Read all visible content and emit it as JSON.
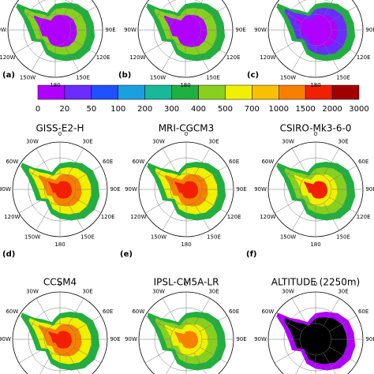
{
  "colorbar": {
    "ticks": [
      "0",
      "20",
      "50",
      "100",
      "200",
      "300",
      "400",
      "500",
      "700",
      "1000",
      "1500",
      "2000",
      "3000"
    ],
    "colors": [
      "#b000ff",
      "#6a2cff",
      "#2050ff",
      "#1aa0e0",
      "#18b89a",
      "#20b040",
      "#88d020",
      "#f0f000",
      "#f8c000",
      "#f88000",
      "#f02000",
      "#a00000"
    ]
  },
  "panels": [
    {
      "label": "(a)",
      "grid_labels": [
        "90E",
        "120E",
        "150E",
        "180",
        "150W",
        "120W",
        "90W"
      ],
      "colors": [
        "#20b040",
        "#88d020",
        "#b000ff",
        "#b000ff"
      ]
    },
    {
      "label": "(b)",
      "grid_labels": [
        "90E",
        "120E",
        "150E",
        "180",
        "150W",
        "120W",
        "90W"
      ],
      "colors": [
        "#20b040",
        "#88d020",
        "#b000ff",
        "#b000ff"
      ]
    },
    {
      "label": "(c)",
      "grid_labels": [
        "90E",
        "120E",
        "150E",
        "180",
        "150W",
        "120W",
        "90W"
      ],
      "colors": [
        "#20b040",
        "#6a2cff",
        "#b000ff",
        "#b000ff"
      ]
    },
    {
      "label": "(d)",
      "title": "GISS-E2-H",
      "grid_labels": [
        "0",
        "30E",
        "60E",
        "90E",
        "120E",
        "150E",
        "180",
        "150W",
        "120W",
        "90W",
        "60W",
        "30W"
      ],
      "colors": [
        "#20b040",
        "#f0f000",
        "#f88000",
        "#f02000"
      ]
    },
    {
      "label": "(e)",
      "title": "MRI-CGCM3",
      "grid_labels": [
        "0",
        "30E",
        "60E",
        "90E",
        "120E",
        "150E",
        "180",
        "150W",
        "120W",
        "90W",
        "60W",
        "30W"
      ],
      "colors": [
        "#20b040",
        "#f0f000",
        "#f88000",
        "#f02000"
      ]
    },
    {
      "label": "(f)",
      "title": "CSIRO-Mk3-6-0",
      "grid_labels": [
        "0",
        "30E",
        "60E",
        "90E",
        "120E",
        "150E",
        "180",
        "150W",
        "120W",
        "90W",
        "60W",
        "30W"
      ],
      "colors": [
        "#20b040",
        "#88d020",
        "#f0f000",
        "#f02000"
      ]
    },
    {
      "title": "CCSM4",
      "grid_labels": [
        "0",
        "30E",
        "60E",
        "90E",
        "90W",
        "60W",
        "30W"
      ],
      "colors": [
        "#20b040",
        "#f0f000",
        "#f88000",
        "#f02000"
      ]
    },
    {
      "title": "IPSL-CM5A-LR",
      "grid_labels": [
        "0",
        "30E",
        "60E",
        "90E",
        "90W",
        "60W",
        "30W"
      ],
      "colors": [
        "#20b040",
        "#88d020",
        "#f0f000",
        "#f88000"
      ]
    },
    {
      "title": "ALTITUDE (2250m)",
      "grid_labels": [
        "0",
        "30E",
        "60E",
        "90E",
        "90W",
        "60W",
        "30W"
      ],
      "colors": [
        "#b000ff",
        "#000000",
        "#000000",
        "#000000"
      ]
    }
  ]
}
